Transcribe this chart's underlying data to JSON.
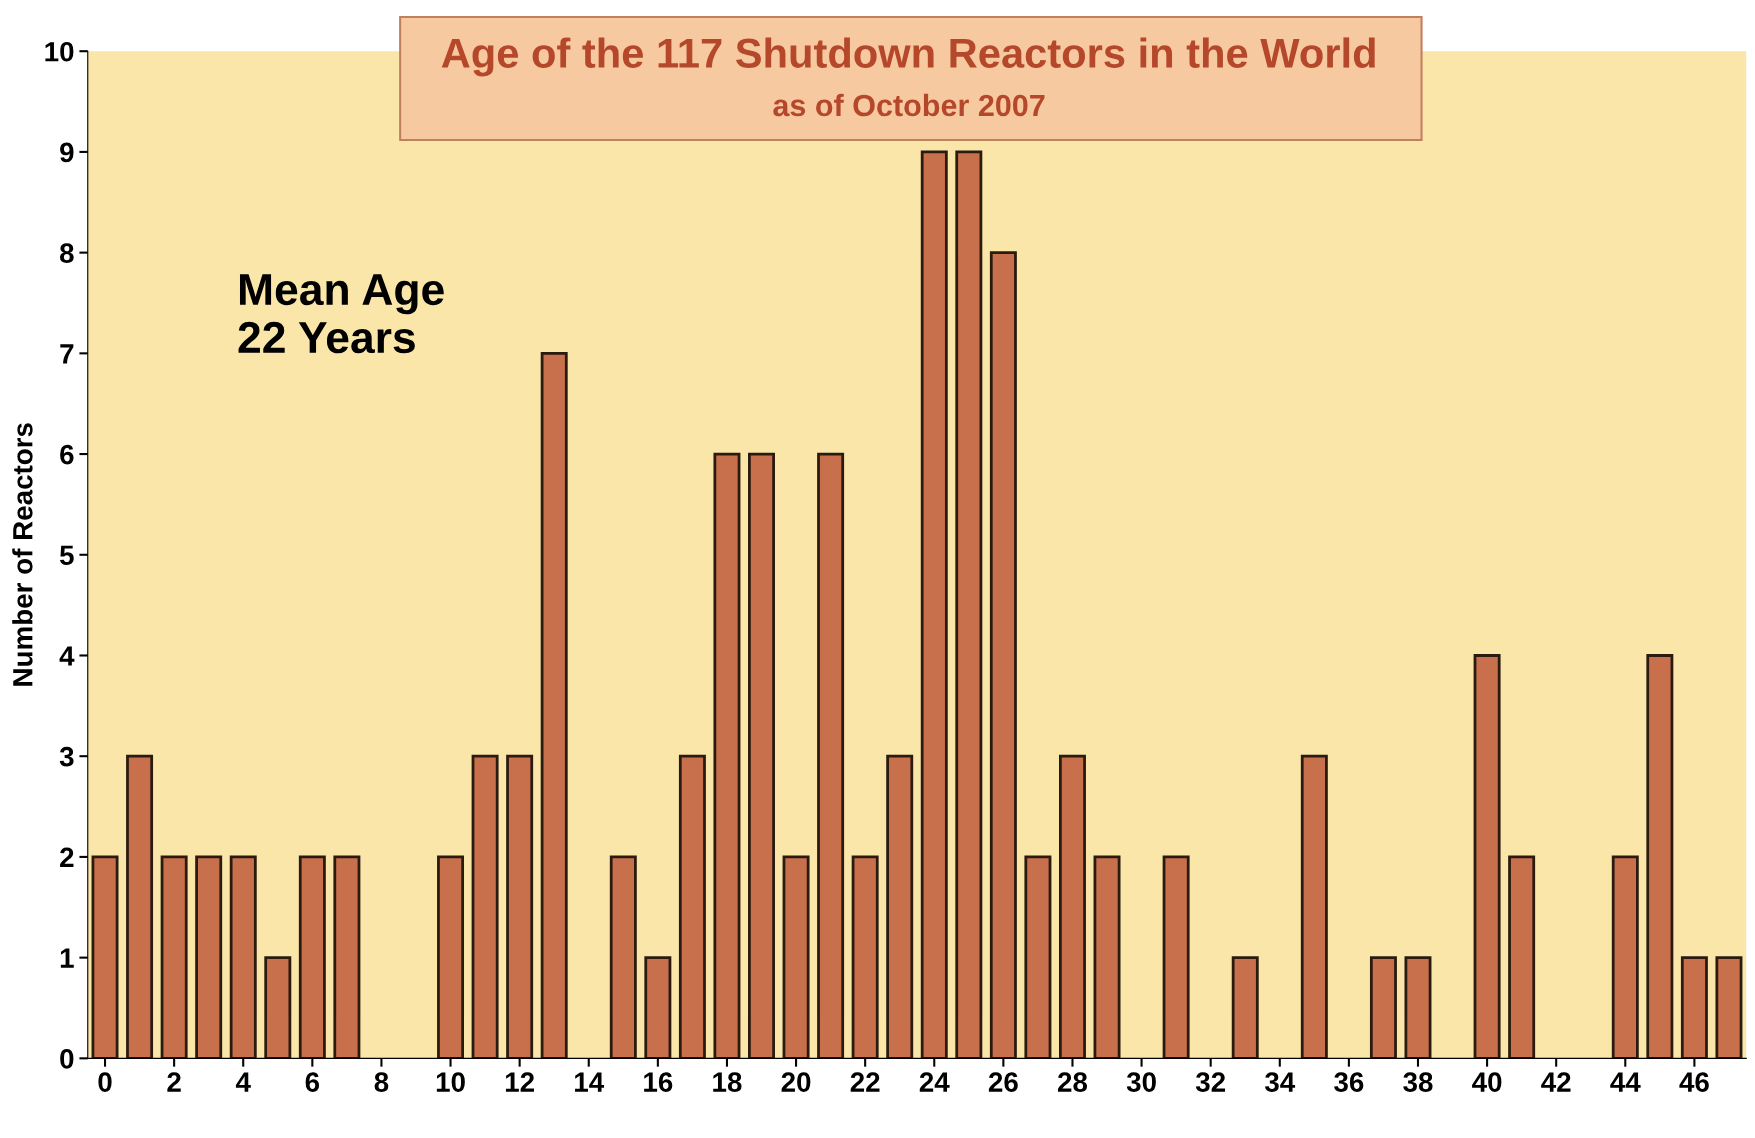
{
  "chart_data": {
    "type": "bar",
    "title": "Age of the 117 Shutdown Reactors in the World",
    "subtitle": "as of October 2007",
    "ylabel": "Number of Reactors",
    "x": [
      0,
      1,
      2,
      3,
      4,
      5,
      6,
      7,
      8,
      9,
      10,
      11,
      12,
      13,
      14,
      15,
      16,
      17,
      18,
      19,
      20,
      21,
      22,
      23,
      24,
      25,
      26,
      27,
      28,
      29,
      30,
      31,
      32,
      33,
      34,
      35,
      36,
      37,
      38,
      39,
      40,
      41,
      42,
      43,
      44,
      45,
      46,
      47
    ],
    "values": [
      2,
      3,
      2,
      2,
      2,
      1,
      2,
      2,
      0,
      0,
      2,
      3,
      3,
      7,
      0,
      2,
      1,
      3,
      6,
      6,
      2,
      6,
      2,
      3,
      9,
      9,
      8,
      2,
      3,
      2,
      0,
      2,
      0,
      1,
      0,
      3,
      0,
      1,
      1,
      0,
      4,
      2,
      0,
      0,
      2,
      4,
      1,
      1
    ],
    "color": "#c8704c",
    "xlim": [
      -0.5,
      47.5
    ],
    "xticks": [
      0,
      2,
      4,
      6,
      8,
      10,
      12,
      14,
      16,
      18,
      20,
      22,
      24,
      26,
      28,
      30,
      32,
      34,
      36,
      38,
      40,
      42,
      44,
      46
    ],
    "ylim": [
      0,
      10
    ],
    "yticks": [
      0,
      1,
      2,
      3,
      4,
      5,
      6,
      7,
      8,
      9,
      10
    ],
    "grid": false,
    "legend": false,
    "annotations": [
      "Mean Age\n22 Years"
    ]
  }
}
